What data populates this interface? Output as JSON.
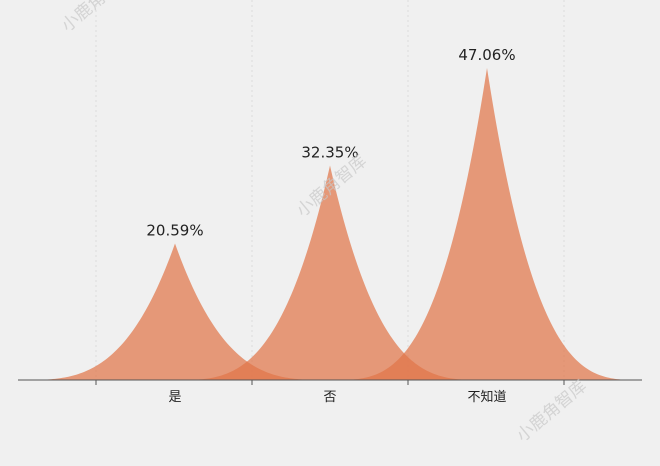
{
  "chart_data": {
    "type": "area",
    "title": "",
    "xlabel": "",
    "ylabel": "",
    "categories": [
      "是",
      "否",
      "不知道"
    ],
    "values": [
      20.59,
      32.35,
      47.06
    ],
    "value_suffix": "%",
    "data_labels": [
      "20.59%",
      "32.35%",
      "47.06%"
    ],
    "ylim": [
      0,
      50
    ],
    "grid": true,
    "legend": "none",
    "series": [
      {
        "values": [
          20.59,
          32.35,
          47.06
        ]
      }
    ]
  },
  "colors": {
    "fill": "#e0764a",
    "grid": "#dcdcdc",
    "axis": "#555555",
    "label": "#222222",
    "background": "#f0f0f0"
  },
  "watermark": {
    "text": "小鹿角智库"
  }
}
